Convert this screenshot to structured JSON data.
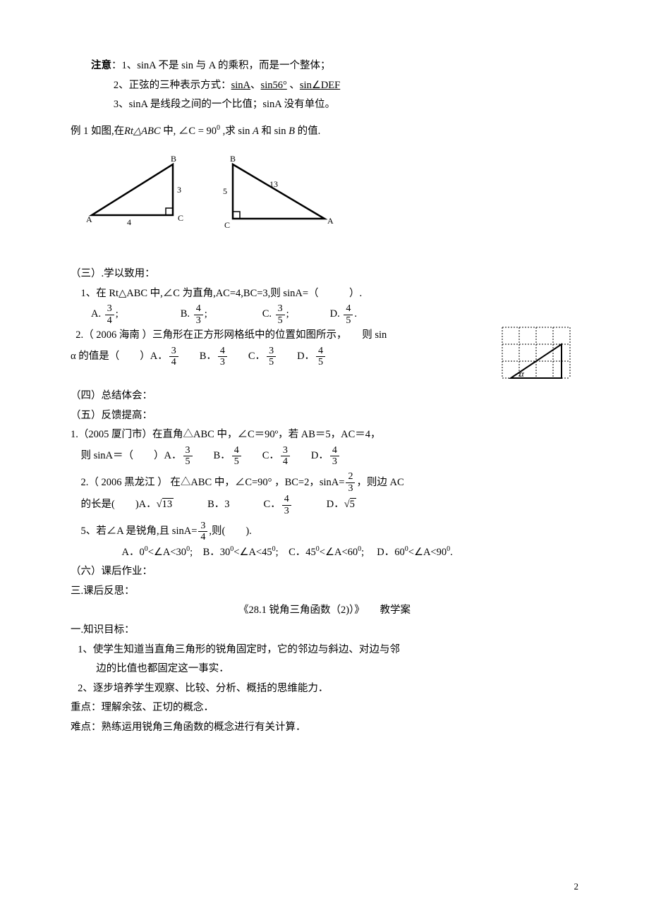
{
  "notes": {
    "title": "注意",
    "n1": "1、sinA 不是 sin 与 A 的乘积，而是一个整体；",
    "n2": "2、正弦的三种表示方式：",
    "u1": "sinA",
    "sep": "、",
    "u2": "sin56°",
    "sepSp": " 、",
    "u3": "sin∠DEF",
    "n3": "3、sinA 是线段之间的一个比值；sinA 没有单位。"
  },
  "ex1": {
    "pre": "例 1 如图,在",
    "tri": "Rt△ABC",
    "mid1": " 中,  ∠C = 90",
    "sup0": "0",
    "mid2": " ,求 sin ",
    "A": "A",
    "mid3": " 和 sin ",
    "B": "B",
    "end": " 的值.",
    "fig1": {
      "A": "A",
      "B": "B",
      "C": "C",
      "b": "4",
      "a": "3"
    },
    "fig2": {
      "A": "A",
      "B": "B",
      "C": "C",
      "b": "5",
      "c": "13"
    }
  },
  "s3": {
    "title": "（三）.学以致用：",
    "q1": {
      "text": "1、在 Rt△ABC 中,∠C 为直角,AC=4,BC=3,则 sinA=（　　　）.",
      "A": "A.",
      "An": "3",
      "Ad": "4",
      "As": " ;",
      "B": "B.",
      "Bn": "4",
      "Bd": "3",
      "Bs": " ;",
      "C": "C.",
      "Cn": "3",
      "Cd": "5",
      "Cs": " ;",
      "D": "D.",
      "Dn": "4",
      "Dd": "5",
      "Ds": " ."
    },
    "q2": {
      "line1": "2.（ 2006 海南 ）三角形在正方形网格纸中的位置如图所示，　　则 sin",
      "line2a": "α 的值是（　　）",
      "A": "A．",
      "An": "3",
      "Ad": "4",
      "B": "B．",
      "Bn": "4",
      "Bd": "3",
      "C": "C．",
      "Cn": "3",
      "Cd": "5",
      "D": "D．",
      "Dn": "4",
      "Dd": "5",
      "alpha": "α",
      "grid": {
        "cols": 4,
        "rows": 3,
        "cell": 24,
        "stroke": "#000",
        "fill": "#fff"
      }
    }
  },
  "s4": {
    "title": "（四）总结体会："
  },
  "s5": {
    "title": "（五）反馈提高：",
    "q1": {
      "line1": "1.（2005 厦门市）在直角△ABC 中，∠C＝90º，若 AB＝5，AC＝4，",
      "line2": "则 sinA＝（　　）",
      "A": "A．",
      "An": "3",
      "Ad": "5",
      "B": "B．",
      "Bn": "4",
      "Bd": "5",
      "C": "C．",
      "Cn": "3",
      "Cd": "4",
      "D": "D．",
      "Dn": "4",
      "Dd": "3"
    },
    "q2": {
      "line1a": "2.（ 2006 黑龙江 ） 在△ABC 中，∠C=90° ，BC=2，sinA=",
      "fn": "2",
      "fd": "3",
      "line1b": "，则边 AC",
      "line2": "的长是(　　)",
      "A": "A．",
      "Av": "13",
      "B": "B．3",
      "C": "C．",
      "Cn": "4",
      "Cd": "3",
      "D": "D．",
      "Dv": "5"
    },
    "q5": {
      "pre": "5、若∠A 是锐角,且 sinA=",
      "fn": "3",
      "fd": "4",
      "post": ",则(　　).",
      "A": "A．0",
      "As": "0",
      "Am": "<∠A<30",
      "Ae": "0",
      "Af": "; ",
      "B": "B．30",
      "Bs": "0",
      "Bm": "<∠A<45",
      "Be": "0",
      "Bf": "; ",
      "C": "C．45",
      "Cs": "0",
      "Cm": "<∠A<60",
      "Ce": "0",
      "Cf": "; ",
      "D": "D．60",
      "Ds": "0",
      "Dm": "<∠A<90",
      "De": "0",
      "Df": "."
    }
  },
  "s6": {
    "title": "（六）课后作业："
  },
  "reflect": "三.课后反思：",
  "title2": "《28.1 锐角三角函数（2)）》　　教学案",
  "kg": {
    "h": "一.知识目标：",
    "k1a": "1、使学生知道当直角三角形的锐角固定时，它的邻边与斜边、对边与邻",
    "k1b": "边的比值也都固定这一事实．",
    "k2": "2、逐步培养学生观察、比较、分析、概括的思维能力．",
    "zd": "重点：理解余弦、正切的概念．",
    "nd": "难点：熟练运用锐角三角函数的概念进行有关计算．"
  },
  "pageNum": "2"
}
